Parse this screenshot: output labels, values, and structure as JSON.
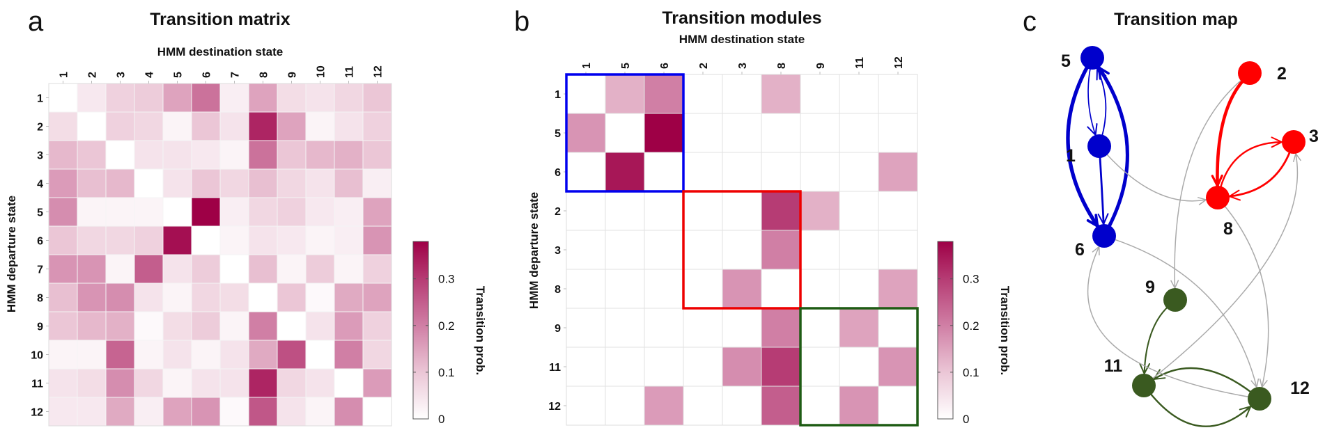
{
  "chart_data": [
    {
      "type": "heatmap",
      "panel_letter": "a",
      "title": "Transition matrix",
      "xlabel": "HMM destination state",
      "ylabel": "HMM departure state",
      "x_categories": [
        "1",
        "2",
        "3",
        "4",
        "5",
        "6",
        "7",
        "8",
        "9",
        "10",
        "11",
        "12"
      ],
      "y_categories": [
        "1",
        "2",
        "3",
        "4",
        "5",
        "6",
        "7",
        "8",
        "9",
        "10",
        "11",
        "12"
      ],
      "values": [
        [
          0.0,
          0.04,
          0.08,
          0.09,
          0.15,
          0.22,
          0.03,
          0.15,
          0.06,
          0.05,
          0.07,
          0.1
        ],
        [
          0.06,
          0.0,
          0.08,
          0.07,
          0.02,
          0.1,
          0.05,
          0.33,
          0.15,
          0.02,
          0.05,
          0.08
        ],
        [
          0.12,
          0.1,
          0.0,
          0.05,
          0.05,
          0.04,
          0.02,
          0.22,
          0.1,
          0.12,
          0.13,
          0.1
        ],
        [
          0.16,
          0.11,
          0.12,
          0.0,
          0.05,
          0.1,
          0.07,
          0.11,
          0.07,
          0.05,
          0.11,
          0.03
        ],
        [
          0.18,
          0.02,
          0.02,
          0.02,
          0.0,
          0.38,
          0.03,
          0.07,
          0.08,
          0.04,
          0.03,
          0.15
        ],
        [
          0.1,
          0.07,
          0.07,
          0.08,
          0.36,
          0.0,
          0.02,
          0.05,
          0.04,
          0.02,
          0.03,
          0.17
        ],
        [
          0.17,
          0.17,
          0.02,
          0.25,
          0.05,
          0.09,
          0.0,
          0.11,
          0.02,
          0.09,
          0.02,
          0.08
        ],
        [
          0.11,
          0.17,
          0.18,
          0.05,
          0.02,
          0.07,
          0.06,
          0.0,
          0.1,
          0.01,
          0.14,
          0.15
        ],
        [
          0.1,
          0.12,
          0.13,
          0.01,
          0.06,
          0.09,
          0.02,
          0.2,
          0.0,
          0.05,
          0.16,
          0.08
        ],
        [
          0.02,
          0.02,
          0.24,
          0.02,
          0.05,
          0.02,
          0.05,
          0.14,
          0.27,
          0.0,
          0.2,
          0.07
        ],
        [
          0.05,
          0.06,
          0.18,
          0.07,
          0.02,
          0.05,
          0.05,
          0.33,
          0.07,
          0.05,
          0.0,
          0.16
        ],
        [
          0.04,
          0.04,
          0.14,
          0.03,
          0.15,
          0.17,
          0.01,
          0.26,
          0.05,
          0.02,
          0.18,
          0.0
        ]
      ],
      "colorbar": {
        "label": "Transition prob.",
        "ticks": [
          "0",
          "0.1",
          "0.2",
          "0.3"
        ],
        "tick_values": [
          0,
          0.1,
          0.2,
          0.3
        ],
        "range": [
          0,
          0.38
        ]
      }
    },
    {
      "type": "heatmap",
      "panel_letter": "b",
      "title": "Transition modules",
      "xlabel": "HMM destination state",
      "ylabel": "HMM departure state",
      "x_categories": [
        "1",
        "5",
        "6",
        "2",
        "3",
        "8",
        "9",
        "11",
        "12"
      ],
      "y_categories": [
        "1",
        "5",
        "6",
        "2",
        "3",
        "8",
        "9",
        "11",
        "12"
      ],
      "values": [
        [
          0.0,
          0.13,
          0.2,
          0,
          0,
          0.13,
          0,
          0,
          0
        ],
        [
          0.17,
          0.0,
          0.38,
          0,
          0,
          0,
          0,
          0,
          0
        ],
        [
          0,
          0.35,
          0.0,
          0,
          0,
          0,
          0,
          0,
          0.15
        ],
        [
          0,
          0,
          0,
          0.0,
          0,
          0.3,
          0.13,
          0,
          0
        ],
        [
          0,
          0,
          0,
          0,
          0.0,
          0.2,
          0,
          0,
          0
        ],
        [
          0,
          0,
          0,
          0,
          0.17,
          0.0,
          0,
          0,
          0.15
        ],
        [
          0,
          0,
          0,
          0,
          0,
          0.2,
          0.0,
          0.15,
          0
        ],
        [
          0,
          0,
          0,
          0,
          0.18,
          0.3,
          0,
          0.0,
          0.17
        ],
        [
          0,
          0,
          0.16,
          0,
          0,
          0.25,
          0,
          0.17,
          0.0
        ]
      ],
      "modules": [
        {
          "states": [
            "1",
            "5",
            "6"
          ],
          "color": "#0000ee"
        },
        {
          "states": [
            "2",
            "3",
            "8"
          ],
          "color": "#ee0000"
        },
        {
          "states": [
            "9",
            "11",
            "12"
          ],
          "color": "#1e5c14"
        }
      ],
      "colorbar": {
        "label": "Transition prob.",
        "ticks": [
          "0",
          "0.1",
          "0.2",
          "0.3"
        ],
        "tick_values": [
          0,
          0.1,
          0.2,
          0.3
        ],
        "range": [
          0,
          0.38
        ]
      }
    },
    {
      "type": "network",
      "panel_letter": "c",
      "title": "Transition map",
      "nodes": [
        {
          "id": "5",
          "module": 0
        },
        {
          "id": "1",
          "module": 0
        },
        {
          "id": "6",
          "module": 0
        },
        {
          "id": "2",
          "module": 1
        },
        {
          "id": "3",
          "module": 1
        },
        {
          "id": "8",
          "module": 1
        },
        {
          "id": "9",
          "module": 2
        },
        {
          "id": "11",
          "module": 2
        },
        {
          "id": "12",
          "module": 2
        }
      ],
      "module_colors": [
        "#0000cc",
        "#ff0000",
        "#3a5a20"
      ],
      "intermodule_color": "#aaaaaa",
      "edges": [
        {
          "from": "5",
          "to": "6",
          "weight": 0.38
        },
        {
          "from": "6",
          "to": "5",
          "weight": 0.36
        },
        {
          "from": "5",
          "to": "1",
          "weight": 0.12
        },
        {
          "from": "1",
          "to": "5",
          "weight": 0.13
        },
        {
          "from": "1",
          "to": "6",
          "weight": 0.2
        },
        {
          "from": "2",
          "to": "8",
          "weight": 0.33
        },
        {
          "from": "8",
          "to": "3",
          "weight": 0.17
        },
        {
          "from": "3",
          "to": "8",
          "weight": 0.2
        },
        {
          "from": "9",
          "to": "11",
          "weight": 0.15
        },
        {
          "from": "11",
          "to": "12",
          "weight": 0.17
        },
        {
          "from": "12",
          "to": "11",
          "weight": 0.17
        },
        {
          "from": "1",
          "to": "8",
          "weight": 0.13
        },
        {
          "from": "2",
          "to": "9",
          "weight": 0.13
        },
        {
          "from": "8",
          "to": "12",
          "weight": 0.15
        },
        {
          "from": "6",
          "to": "12",
          "weight": 0.15
        },
        {
          "from": "12",
          "to": "6",
          "weight": 0.16
        },
        {
          "from": "11",
          "to": "3",
          "weight": 0.18
        }
      ]
    }
  ]
}
